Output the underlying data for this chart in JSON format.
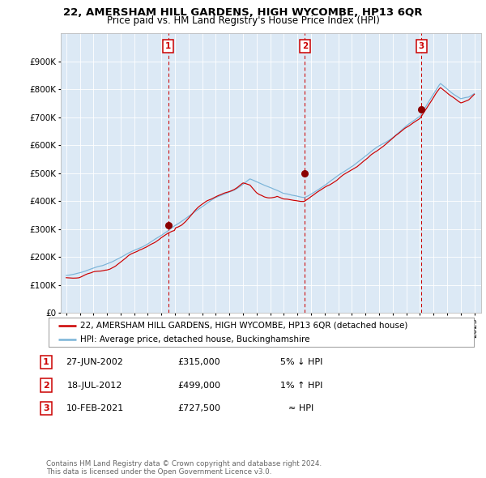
{
  "title": "22, AMERSHAM HILL GARDENS, HIGH WYCOMBE, HP13 6QR",
  "subtitle": "Price paid vs. HM Land Registry's House Price Index (HPI)",
  "fig_bg_color": "#ffffff",
  "plot_bg_color": "#dce9f5",
  "hpi_color": "#7ab4d8",
  "price_color": "#cc0000",
  "sale_marker_color": "#8b0000",
  "vline_color": "#cc0000",
  "ylim": [
    0,
    1000000
  ],
  "yticks": [
    0,
    100000,
    200000,
    300000,
    400000,
    500000,
    600000,
    700000,
    800000,
    900000
  ],
  "ytick_labels": [
    "£0",
    "£100K",
    "£200K",
    "£300K",
    "£400K",
    "£500K",
    "£600K",
    "£700K",
    "£800K",
    "£900K"
  ],
  "xmin": 1994.6,
  "xmax": 2025.5,
  "sale_dates": [
    2002.49,
    2012.54,
    2021.11
  ],
  "sale_prices": [
    315000,
    499000,
    727500
  ],
  "sale_labels": [
    "1",
    "2",
    "3"
  ],
  "table_rows": [
    [
      "1",
      "27-JUN-2002",
      "£315,000",
      "5% ↓ HPI"
    ],
    [
      "2",
      "18-JUL-2012",
      "£499,000",
      "1% ↑ HPI"
    ],
    [
      "3",
      "10-FEB-2021",
      "£727,500",
      "≈ HPI"
    ]
  ],
  "legend_label_price": "22, AMERSHAM HILL GARDENS, HIGH WYCOMBE, HP13 6QR (detached house)",
  "legend_label_hpi": "HPI: Average price, detached house, Buckinghamshire",
  "footer": "Contains HM Land Registry data © Crown copyright and database right 2024.\nThis data is licensed under the Open Government Licence v3.0."
}
